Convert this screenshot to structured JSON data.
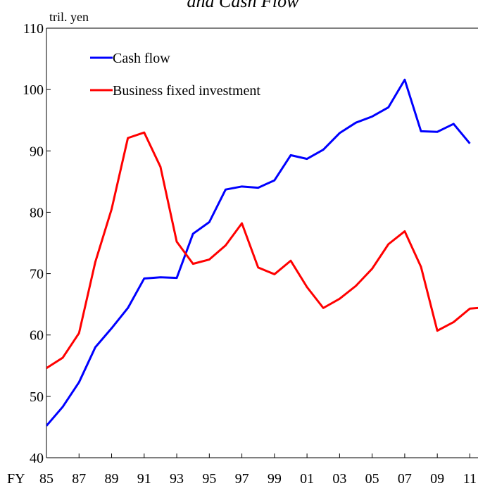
{
  "chart_data": {
    "type": "line",
    "title": "and Cash Flow",
    "ylabel": "tril. yen",
    "xlabel": "FY",
    "x": [
      1985,
      1986,
      1987,
      1988,
      1989,
      1990,
      1991,
      1992,
      1993,
      1994,
      1995,
      1996,
      1997,
      1998,
      1999,
      2000,
      2001,
      2002,
      2003,
      2004,
      2005,
      2006,
      2007,
      2008,
      2009,
      2010,
      2011,
      2012
    ],
    "series": [
      {
        "name": "Cash flow",
        "color": "#0000ff",
        "values": [
          45.2,
          48.3,
          52.3,
          58.0,
          61.1,
          64.4,
          69.2,
          69.4,
          69.3,
          76.5,
          78.4,
          83.7,
          84.2,
          84.0,
          85.2,
          89.3,
          88.7,
          90.2,
          92.9,
          94.6,
          95.6,
          97.1,
          101.6,
          93.2,
          93.1,
          94.4,
          91.2,
          null
        ]
      },
      {
        "name": "Business fixed investment",
        "color": "#ff0000",
        "values": [
          54.6,
          56.3,
          60.3,
          71.9,
          80.5,
          92.1,
          93.0,
          87.4,
          75.2,
          71.6,
          72.3,
          74.6,
          78.2,
          71.0,
          69.9,
          72.1,
          67.8,
          64.4,
          65.9,
          68.0,
          70.8,
          74.8,
          76.9,
          71.1,
          60.7,
          62.1,
          64.3,
          64.5
        ]
      }
    ],
    "xlim": [
      1985,
      2011.5
    ],
    "ylim": [
      40,
      110
    ],
    "yticks": [
      40,
      50,
      60,
      70,
      80,
      90,
      100,
      110
    ],
    "xticks": [
      {
        "value": 1985,
        "label": "85"
      },
      {
        "value": 1987,
        "label": "87"
      },
      {
        "value": 1989,
        "label": "89"
      },
      {
        "value": 1991,
        "label": "91"
      },
      {
        "value": 1993,
        "label": "93"
      },
      {
        "value": 1995,
        "label": "95"
      },
      {
        "value": 1997,
        "label": "97"
      },
      {
        "value": 1999,
        "label": "99"
      },
      {
        "value": 2001,
        "label": "01"
      },
      {
        "value": 2003,
        "label": "03"
      },
      {
        "value": 2005,
        "label": "05"
      },
      {
        "value": 2007,
        "label": "07"
      },
      {
        "value": 2009,
        "label": "09"
      },
      {
        "value": 2011,
        "label": "11"
      }
    ]
  }
}
